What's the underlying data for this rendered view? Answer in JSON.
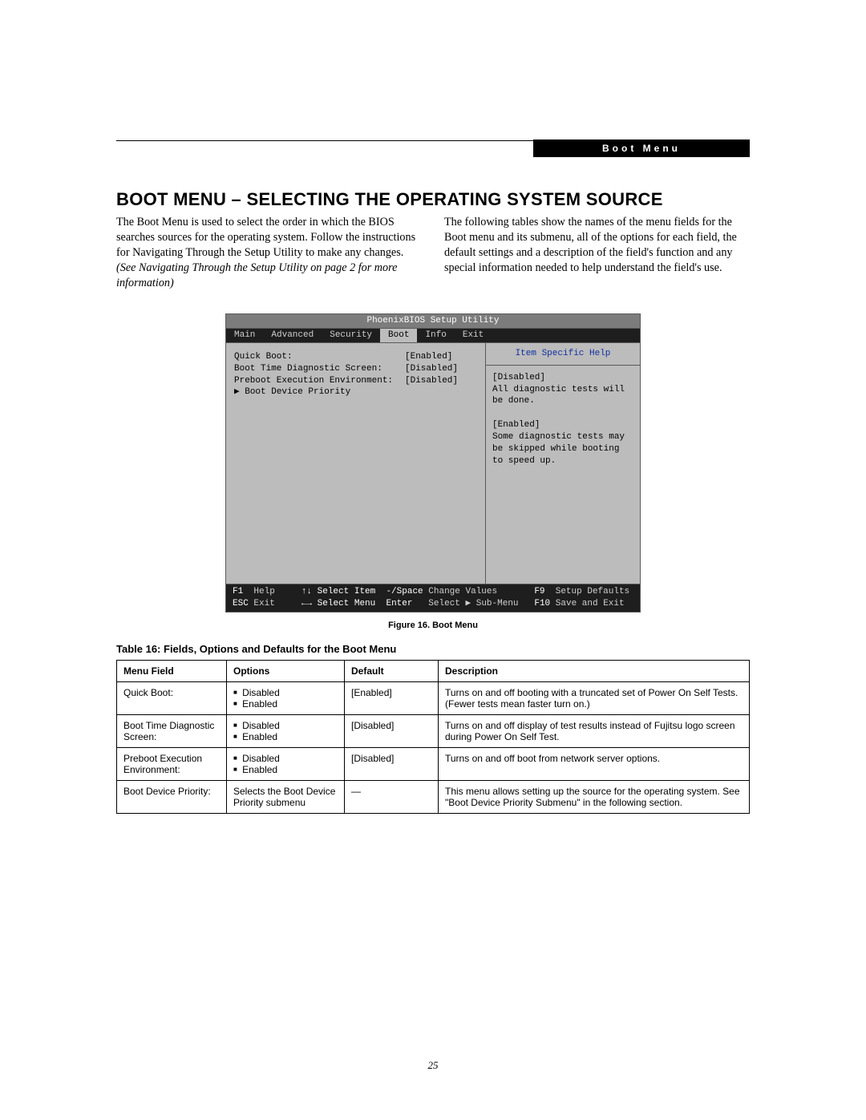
{
  "header_label": "Boot Menu",
  "title": "BOOT MENU – SELECTING THE OPERATING SYSTEM SOURCE",
  "intro_col1_a": "The Boot Menu is used to select the order in which the BIOS searches sources for the operating system. Follow the instructions for Navigating Through the Setup Utility to make any changes. ",
  "intro_col1_b": "(See Navigating Through the Setup Utility on page 2 for more information)",
  "intro_col2": "The following tables show the names of the menu fields for the Boot menu and its submenu, all of the options for each field, the default settings and a description of the field's function and any special information needed to help understand the field's use.",
  "bios": {
    "title": "PhoenixBIOS Setup Utility",
    "tabs": [
      "Main",
      "Advanced",
      "Security",
      "Boot",
      "Info",
      "Exit"
    ],
    "active_tab": "Boot",
    "rows": [
      {
        "label": "Quick Boot:",
        "value": "[Enabled]"
      },
      {
        "label": "Boot Time Diagnostic Screen:",
        "value": "[Disabled]"
      },
      {
        "label": "",
        "value": ""
      },
      {
        "label": "Preboot Execution Environment:",
        "value": "[Disabled]"
      },
      {
        "label": "▶ Boot Device Priority",
        "value": ""
      }
    ],
    "help_title": "Item Specific Help",
    "help_body": "[Disabled]\nAll diagnostic tests will be done.\n\n[Enabled]\nSome diagnostic tests may be skipped while booting to speed up.",
    "footer1": {
      "k1": "F1",
      "t1": "Help",
      "t2": "↑↓ Select Item",
      "t3": "-/Space",
      "t4": "Change Values",
      "k2": "F9",
      "t5": "Setup Defaults"
    },
    "footer2": {
      "k1": "ESC",
      "t1": "Exit",
      "t2": "←→ Select Menu",
      "t3": "Enter",
      "t4": "Select ▶ Sub-Menu",
      "k2": "F10",
      "t5": "Save and Exit"
    }
  },
  "figure_caption": "Figure 16.   Boot Menu",
  "table_title": "Table 16: Fields, Options and Defaults for the Boot Menu",
  "table": {
    "headers": [
      "Menu Field",
      "Options",
      "Default",
      "Description"
    ],
    "rows": [
      {
        "field": "Quick Boot:",
        "options": [
          "Disabled",
          "Enabled"
        ],
        "options_plain": null,
        "def": "[Enabled]",
        "desc": "Turns on and off booting with a truncated set of Power On Self Tests. (Fewer tests mean faster turn on.)"
      },
      {
        "field": "Boot Time Diagnostic Screen:",
        "options": [
          "Disabled",
          "Enabled"
        ],
        "options_plain": null,
        "def": "[Disabled]",
        "desc": "Turns on and off display of test results instead of Fujitsu logo screen during Power On Self Test."
      },
      {
        "field": "Preboot Execution Environment:",
        "options": [
          "Disabled",
          "Enabled"
        ],
        "options_plain": null,
        "def": "[Disabled]",
        "desc": "Turns on and off boot from network server options."
      },
      {
        "field": "Boot Device Priority:",
        "options": null,
        "options_plain": "Selects the Boot Device Priority submenu",
        "def": "—",
        "desc": "This menu allows setting up the source for the operating system. See \"Boot Device Priority Submenu\" in the following section."
      }
    ]
  },
  "page_number": "25"
}
